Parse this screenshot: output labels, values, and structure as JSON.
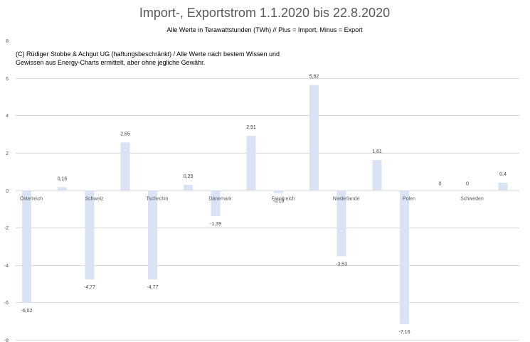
{
  "chart_data": {
    "type": "bar",
    "title": "Import-, Exportstrom 1.1.2020 bis 22.8.2020",
    "subtitle": "Alle Werte in Terawattstunden (TWh) // Plus = Import, Minus = Export",
    "note_lines": [
      "(C) Rüdiger Stobbe & Achgut UG (haftungsbeschränkt) / Alle Werte nach bestem Wissen und",
      "Gewissen aus Energy-Charts ermittelt, aber ohne jegliche Gewähr."
    ],
    "categories": [
      "Österreich",
      "Schweiz",
      "Tschechin",
      "Dänemark",
      "Frankreich",
      "Niederlande",
      "Polen",
      "Schweden"
    ],
    "series": [
      {
        "values": [
          -6.02,
          -4.77,
          -4.77,
          -1.39,
          -0.16,
          -3.53,
          -7.16,
          0
        ]
      },
      {
        "values": [
          0.16,
          2.55,
          0.29,
          2.91,
          5.62,
          1.61,
          0,
          0.4
        ]
      }
    ],
    "data_labels": [
      [
        "-6,02",
        "-4,77",
        "-4,77",
        "-1,39",
        "-0,16",
        "-3,53",
        "-7,16",
        "0"
      ],
      [
        "0,16",
        "2,55",
        "0,29",
        "2,91",
        "5,62",
        "1,61",
        "0",
        "0,4"
      ]
    ],
    "ylim": [
      -8,
      8
    ],
    "yticks": [
      -8,
      -6,
      -4,
      -2,
      0,
      2,
      4,
      6,
      8
    ],
    "ytick_labels": [
      "-8",
      "-6",
      "-4",
      "-2",
      "0",
      "2",
      "4",
      "6",
      "8"
    ],
    "grid": true,
    "legend": "none",
    "colors": {
      "bar": "#dae3f3",
      "grid": "#d9d9d9",
      "text": "#595959"
    }
  }
}
